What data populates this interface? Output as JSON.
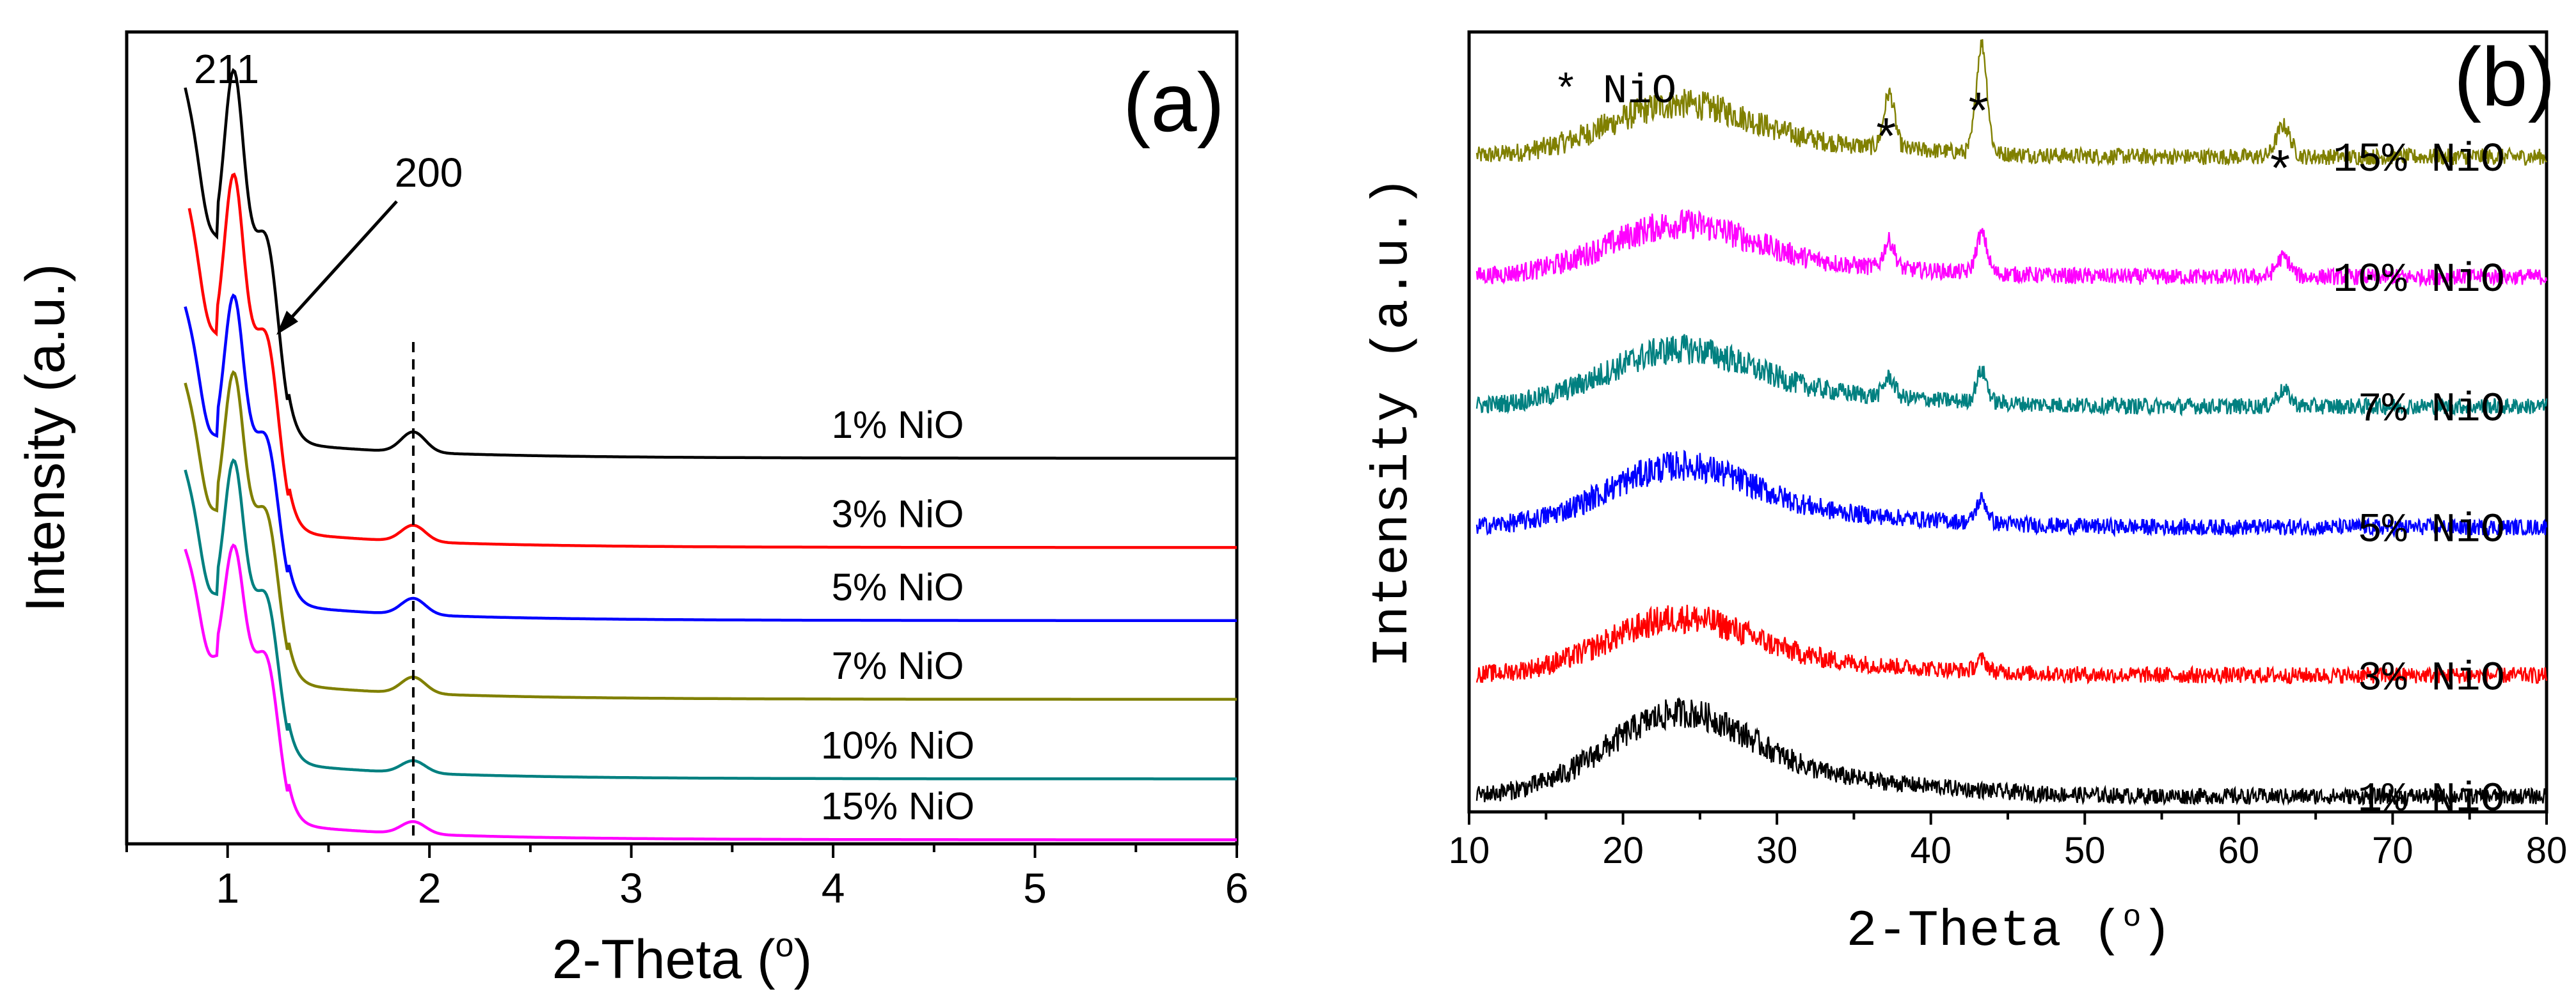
{
  "chart_data": [
    {
      "panel_label": "(a)",
      "type": "line",
      "title": "",
      "xlabel": "2-Theta (",
      "xlabel_sup": "o",
      "xlabel_tail": ")",
      "ylabel": "Intensity (a.u.)",
      "xlim": [
        0.5,
        6
      ],
      "ylim": [
        0,
        1
      ],
      "x_ticks": [
        1,
        2,
        3,
        4,
        5,
        6
      ],
      "x_tick_labels": [
        "1",
        "2",
        "3",
        "4",
        "5",
        "6"
      ],
      "y_ticks_labeled": false,
      "grid": false,
      "peak_labels": [
        {
          "text": "211",
          "x": 1.02
        },
        {
          "text": "200",
          "x": 1.2
        }
      ],
      "dashed_line_x": 1.92,
      "series": [
        {
          "name": "1% NiO",
          "color": "#000000",
          "baseline": 0.475,
          "amp": 0.79,
          "drop": 0.265,
          "sec": 0.025,
          "start": 0.79
        },
        {
          "name": "3% NiO",
          "color": "#ff0000",
          "baseline": 0.365,
          "amp": 0.76,
          "drop": 0.255,
          "sec": 0.02,
          "start": 0.81
        },
        {
          "name": "5% NiO",
          "color": "#0000ff",
          "baseline": 0.275,
          "amp": 0.67,
          "drop": 0.22,
          "sec": 0.02,
          "start": 0.79
        },
        {
          "name": "7% NiO",
          "color": "#808000",
          "baseline": 0.178,
          "amp": 0.66,
          "drop": 0.225,
          "sec": 0.02,
          "start": 0.79
        },
        {
          "name": "10% NiO",
          "color": "#008080",
          "baseline": 0.08,
          "amp": 0.64,
          "drop": 0.22,
          "sec": 0.015,
          "start": 0.79
        },
        {
          "name": "15% NiO",
          "color": "#ff00ff",
          "baseline": 0.005,
          "amp": 0.53,
          "drop": 0.22,
          "sec": 0.015,
          "start": 0.79
        }
      ]
    },
    {
      "panel_label": "(b)",
      "type": "line",
      "title": "",
      "xlabel": "2-Theta (",
      "xlabel_sup": "o",
      "xlabel_tail": ")",
      "ylabel": "Intensity (a.u.)",
      "xlim": [
        10,
        80
      ],
      "ylim": [
        0,
        1
      ],
      "x_ticks": [
        10,
        20,
        30,
        40,
        50,
        60,
        70,
        80
      ],
      "x_tick_labels": [
        "10",
        "20",
        "30",
        "40",
        "50",
        "60",
        "70",
        "80"
      ],
      "y_ticks_labeled": false,
      "grid": false,
      "legend_note": "* NiO",
      "star_marker": "*",
      "star_positions": [
        37.3,
        43.3,
        62.9
      ],
      "series": [
        {
          "name": "15% NiO",
          "color": "#808000",
          "baseline": 0.84,
          "hump": 0.06,
          "peaks": [
            0.07,
            0.14,
            0.04
          ]
        },
        {
          "name": "10% NiO",
          "color": "#ff00ff",
          "baseline": 0.686,
          "hump": 0.06,
          "peaks": [
            0.035,
            0.05,
            0.025
          ]
        },
        {
          "name": "7% NiO",
          "color": "#008080",
          "baseline": 0.52,
          "hump": 0.065,
          "peaks": [
            0.025,
            0.04,
            0.02
          ]
        },
        {
          "name": "5% NiO",
          "color": "#0000ff",
          "baseline": 0.365,
          "hump": 0.07,
          "peaks": [
            0.0,
            0.03,
            0.0
          ]
        },
        {
          "name": "3% NiO",
          "color": "#ff0000",
          "baseline": 0.175,
          "hump": 0.065,
          "peaks": [
            0.0,
            0.015,
            0.0
          ]
        },
        {
          "name": "1% NiO",
          "color": "#000000",
          "baseline": 0.02,
          "hump": 0.095,
          "peaks": [
            0.0,
            0.0,
            0.0
          ]
        }
      ]
    }
  ]
}
